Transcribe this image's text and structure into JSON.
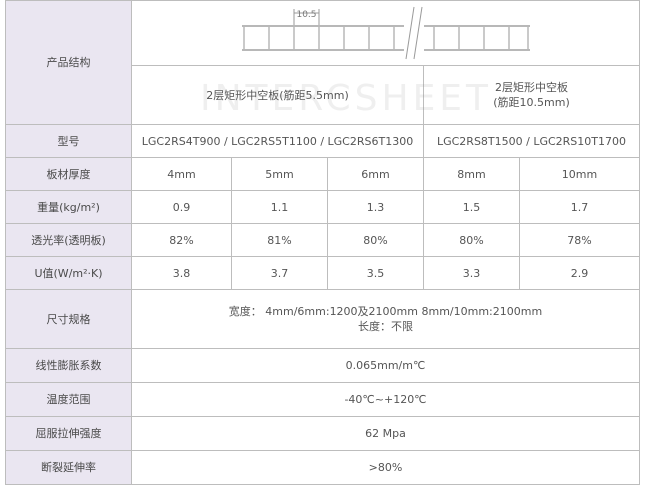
{
  "labels": {
    "structure": "产品结构",
    "model": "型号",
    "thickness": "板材厚度",
    "weight": "重量(kg/m²)",
    "transmission": "透光率(透明板)",
    "u_value": "U值(W/m²·K)",
    "size": "尺寸规格",
    "expansion": "线性膨胀系数",
    "temp_range": "温度范围",
    "yield_strength": "屈服拉伸强度",
    "elongation": "断裂延伸率"
  },
  "diagram": {
    "dimension": "10.5"
  },
  "groups": [
    {
      "name": "2层矩形中空板(筋距5.5mm)",
      "models": "LGC2RS4T900 / LGC2RS5T1100 / LGC2RS6T1300"
    },
    {
      "name_line1": "2层矩形中空板",
      "name_line2": "(筋距10.5mm)",
      "models": "LGC2RS8T1500 / LGC2RS10T1700"
    }
  ],
  "rows": {
    "thickness": [
      "4mm",
      "5mm",
      "6mm",
      "8mm",
      "10mm"
    ],
    "weight": [
      "0.9",
      "1.1",
      "1.3",
      "1.5",
      "1.7"
    ],
    "transmission": [
      "82%",
      "81%",
      "80%",
      "80%",
      "78%"
    ],
    "u_value": [
      "3.8",
      "3.7",
      "3.5",
      "3.3",
      "2.9"
    ]
  },
  "size": {
    "width": "宽度： 4mm/6mm:1200及2100mm 8mm/10mm:2100mm",
    "length": "长度：不限"
  },
  "expansion": "0.065mm/m℃",
  "temp_range": "-40℃~+120℃",
  "yield_strength": "62 Mpa",
  "elongation": ">80%",
  "watermark": "INTERCSHEET"
}
